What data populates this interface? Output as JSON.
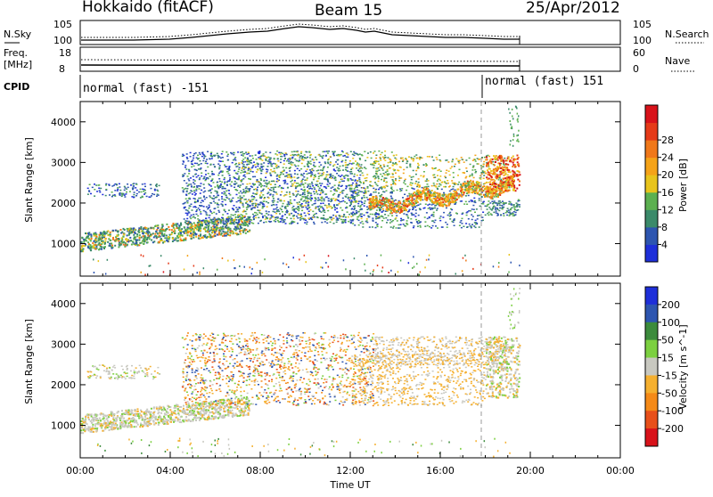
{
  "header": {
    "site": "Hokkaido (fitACF)",
    "beam": "Beam 15",
    "date": "25/Apr/2012"
  },
  "noise_panel": {
    "left_label": "N.Sky",
    "right_label": "N.Search",
    "left_ticks": [
      "10^5",
      "10^0"
    ],
    "right_ticks": [
      "10^5",
      "10^0"
    ]
  },
  "freq_panel": {
    "left_label_1": "Freq.",
    "left_label_2": "[MHz]",
    "right_label": "Nave",
    "left_ticks": [
      "18",
      "8"
    ],
    "right_ticks": [
      "60",
      "0"
    ]
  },
  "cpid": {
    "label": "CPID",
    "segments": [
      {
        "text": "normal (fast) -151",
        "start": "00:00",
        "end": "18:00"
      },
      {
        "text": "normal (fast) 151",
        "start": "18:00",
        "end": "24:00"
      }
    ]
  },
  "chart_data": [
    {
      "type": "heatmap",
      "quantity": "Power",
      "ylabel": "Slant Range [km]",
      "ylim": [
        200,
        4500
      ],
      "yticks": [
        "1000",
        "2000",
        "3000",
        "4000"
      ],
      "xlabel": "Time UT",
      "xlim": [
        "00:00",
        "24:00"
      ],
      "colorbar": {
        "label": "Power [dB]",
        "ticks": [
          "4",
          "8",
          "12",
          "16",
          "20",
          "24",
          "28"
        ],
        "colors": [
          "#1e2fd9",
          "#2d55b0",
          "#3b8a6a",
          "#5cb050",
          "#e8c41c",
          "#f5a318",
          "#f0781a",
          "#e53a18",
          "#d8121a"
        ]
      },
      "features": [
        {
          "name": "low band",
          "time": [
            "00:00",
            "07:00"
          ],
          "range_km": [
            900,
            1400
          ],
          "level_dB": 16
        },
        {
          "name": "main echo",
          "time": [
            "13:00",
            "19:30"
          ],
          "range_km": [
            1800,
            2800
          ],
          "level_dB": 24
        },
        {
          "name": "upper scatter",
          "time": [
            "04:30",
            "19:00"
          ],
          "range_km": [
            2200,
            3400
          ],
          "level_dB": 8
        }
      ]
    },
    {
      "type": "heatmap",
      "quantity": "Velocity",
      "ylabel": "Slant Range [km]",
      "ylim": [
        200,
        4500
      ],
      "yticks": [
        "1000",
        "2000",
        "3000",
        "4000"
      ],
      "xlabel": "Time UT",
      "xlim": [
        "00:00",
        "24:00"
      ],
      "xticks": [
        "00:00",
        "04:00",
        "08:00",
        "12:00",
        "16:00",
        "20:00",
        "00:00"
      ],
      "colorbar": {
        "label": "Velocity [m s^-1]",
        "ticks": [
          "200",
          "100",
          "50",
          "15",
          "-15",
          "-50",
          "-100",
          "-200"
        ],
        "colors": [
          "#1e2fd9",
          "#2d55b0",
          "#3c8b3c",
          "#7cd040",
          "#c8c8c0",
          "#f5b030",
          "#f58a18",
          "#e8501a",
          "#d8121a"
        ]
      },
      "features": [
        {
          "name": "low band",
          "time": [
            "00:00",
            "07:00"
          ],
          "range_km": [
            900,
            1400
          ],
          "level_ms": 0
        },
        {
          "name": "mid scatter",
          "time": [
            "06:00",
            "18:00"
          ],
          "range_km": [
            1500,
            3300
          ],
          "level_ms": -50
        }
      ]
    }
  ]
}
